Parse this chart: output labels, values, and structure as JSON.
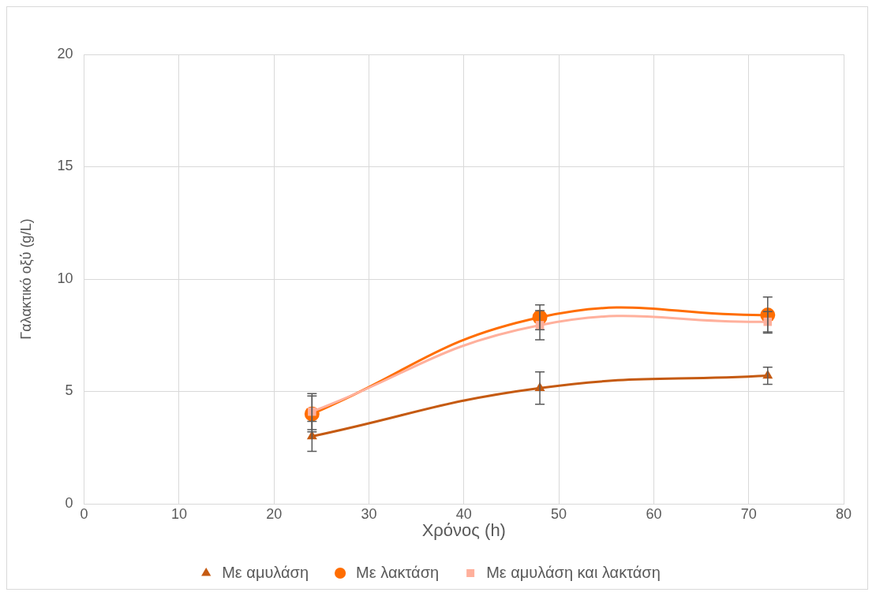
{
  "chart_data": {
    "type": "line",
    "xlabel": "Χρόνος (h)",
    "ylabel": "Γαλακτικό οξύ (g/L)",
    "x": [
      24,
      48,
      72
    ],
    "series": [
      {
        "name": "Με αμυλάση",
        "color": "#c55a11",
        "marker": "triangle",
        "values": [
          3.0,
          5.15,
          5.7
        ],
        "errors": [
          0.67,
          0.72,
          0.38
        ]
      },
      {
        "name": "Με λακτάση",
        "color": "#ff6d00",
        "marker": "circle",
        "values": [
          4.0,
          8.3,
          8.4
        ],
        "errors": [
          0.8,
          0.55,
          0.8
        ]
      },
      {
        "name": "Με αμυλάση και λακτάση",
        "color": "#ffb09c",
        "marker": "square",
        "values": [
          4.1,
          7.95,
          8.1
        ],
        "errors": [
          0.8,
          0.65,
          0.45
        ]
      }
    ],
    "xlim": [
      0,
      80
    ],
    "xticks": [
      0,
      10,
      20,
      30,
      40,
      50,
      60,
      70,
      80
    ],
    "ylim": [
      0,
      20
    ],
    "yticks": [
      0,
      5,
      10,
      15,
      20
    ],
    "grid": true,
    "legend": "bottom"
  }
}
